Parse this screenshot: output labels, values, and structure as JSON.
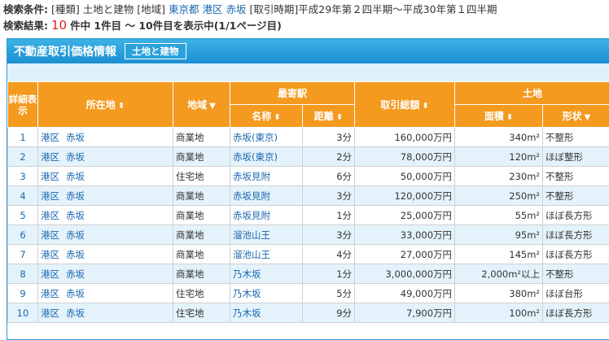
{
  "conditions": {
    "label": "検索条件:",
    "type_tag": "[種類]",
    "type_val": "土地と建物",
    "area_tag": "[地域]",
    "area_pref": "東京都",
    "area_ward": "港区",
    "area_town": "赤坂",
    "period_tag": "[取引時期]",
    "period_val": "平成29年第２四半期〜平成30年第１四半期"
  },
  "result": {
    "label": "検索結果:",
    "count": "10",
    "text": "件中 1件目 〜 10件目を表示中(1/1ページ目)"
  },
  "panel": {
    "title": "不動産取引価格情報",
    "tag": "土地と建物"
  },
  "headers": {
    "detail": "詳細表示",
    "location": "所在地",
    "area": "地域",
    "station_group": "最寄駅",
    "station_name": "名称",
    "station_dist": "距離",
    "price": "取引総額",
    "land_group": "土地",
    "land_area": "面積",
    "land_shape": "形状"
  },
  "icons": {
    "sort": "sort-up-down-icon",
    "filter": "filter-down-icon"
  },
  "colors": {
    "header_orange": "#f39a1f",
    "bar_blue": "#1b8fd1",
    "row_alt": "#e4f3fb",
    "link": "#1a66b0"
  },
  "rows": [
    {
      "no": "1",
      "ward": "港区",
      "town": "赤坂",
      "area": "商業地",
      "station": "赤坂(東京)",
      "dist": "3分",
      "price": "160,000万円",
      "land": "340m²",
      "shape": "不整形"
    },
    {
      "no": "2",
      "ward": "港区",
      "town": "赤坂",
      "area": "商業地",
      "station": "赤坂(東京)",
      "dist": "2分",
      "price": "78,000万円",
      "land": "120m²",
      "shape": "ほぼ整形"
    },
    {
      "no": "3",
      "ward": "港区",
      "town": "赤坂",
      "area": "住宅地",
      "station": "赤坂見附",
      "dist": "6分",
      "price": "50,000万円",
      "land": "230m²",
      "shape": "不整形"
    },
    {
      "no": "4",
      "ward": "港区",
      "town": "赤坂",
      "area": "商業地",
      "station": "赤坂見附",
      "dist": "3分",
      "price": "120,000万円",
      "land": "250m²",
      "shape": "不整形"
    },
    {
      "no": "5",
      "ward": "港区",
      "town": "赤坂",
      "area": "商業地",
      "station": "赤坂見附",
      "dist": "1分",
      "price": "25,000万円",
      "land": "55m²",
      "shape": "ほぼ長方形"
    },
    {
      "no": "6",
      "ward": "港区",
      "town": "赤坂",
      "area": "商業地",
      "station": "溜池山王",
      "dist": "3分",
      "price": "33,000万円",
      "land": "95m²",
      "shape": "ほぼ長方形"
    },
    {
      "no": "7",
      "ward": "港区",
      "town": "赤坂",
      "area": "商業地",
      "station": "溜池山王",
      "dist": "4分",
      "price": "27,000万円",
      "land": "145m²",
      "shape": "ほぼ長方形"
    },
    {
      "no": "8",
      "ward": "港区",
      "town": "赤坂",
      "area": "商業地",
      "station": "乃木坂",
      "dist": "1分",
      "price": "3,000,000万円",
      "land": "2,000m²以上",
      "shape": "不整形"
    },
    {
      "no": "9",
      "ward": "港区",
      "town": "赤坂",
      "area": "住宅地",
      "station": "乃木坂",
      "dist": "5分",
      "price": "49,000万円",
      "land": "380m²",
      "shape": "ほぼ台形"
    },
    {
      "no": "10",
      "ward": "港区",
      "town": "赤坂",
      "area": "住宅地",
      "station": "乃木坂",
      "dist": "9分",
      "price": "7,900万円",
      "land": "100m²",
      "shape": "ほぼ長方形"
    }
  ]
}
